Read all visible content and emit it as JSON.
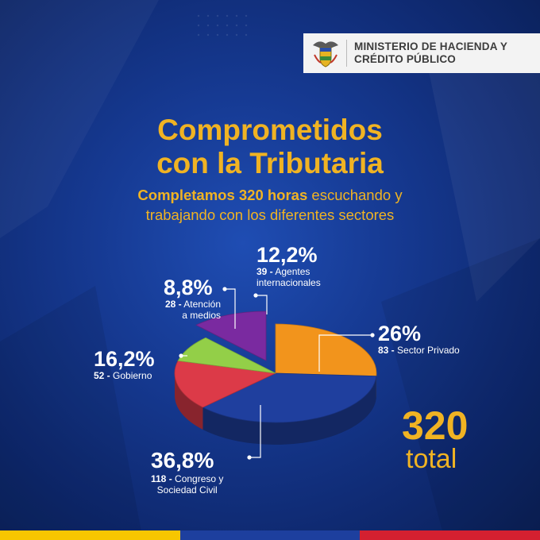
{
  "header": {
    "ministry_line1": "MINISTERIO DE HACIENDA Y",
    "ministry_line2": "CRÉDITO PÚBLICO"
  },
  "title": {
    "line1": "Comprometidos",
    "line2": "con la Tributaria"
  },
  "subtitle": {
    "bold": "Completamos 320 horas",
    "rest1": " escuchando y",
    "line2": "trabajando con los diferentes sectores"
  },
  "total": {
    "number": "320",
    "word": "total"
  },
  "colors": {
    "accent": "#f0b323",
    "background": "#163a93",
    "flag_yellow": "#f7c600",
    "flag_blue": "#1d3f9e",
    "flag_red": "#d42030"
  },
  "chart_data": {
    "type": "pie",
    "units": "horas",
    "total": 320,
    "slices": [
      {
        "label": "Sector Privado",
        "value": 83,
        "percent_label": "26%",
        "color": "#f2941c"
      },
      {
        "label": "Congreso y Sociedad Civil",
        "value": 118,
        "percent_label": "36,8%",
        "color": "#1f3f9e"
      },
      {
        "label": "Gobierno",
        "value": 52,
        "percent_label": "16,2%",
        "color": "#dc3a48"
      },
      {
        "label": "Atención a medios",
        "value": 28,
        "percent_label": "8,8%",
        "color": "#93cf48"
      },
      {
        "label": "Agentes internacionales",
        "value": 39,
        "percent_label": "12,2%",
        "color": "#7a2aa0"
      }
    ],
    "labels": {
      "privado": {
        "pct": "26%",
        "num": "83 -",
        "line1": " Sector Privado"
      },
      "congreso": {
        "pct": "36,8%",
        "num": "118 -",
        "line1": " Congreso y",
        "line2": "Sociedad Civil"
      },
      "gobierno": {
        "pct": "16,2%",
        "num": "52 -",
        "line1": " Gobierno"
      },
      "medios": {
        "pct": "8,8%",
        "num": "28 -",
        "line1": " Atención",
        "line2": "a medios"
      },
      "internacionales": {
        "pct": "12,2%",
        "num": "39 -",
        "line1": " Agentes",
        "line2": "internacionales"
      }
    }
  }
}
